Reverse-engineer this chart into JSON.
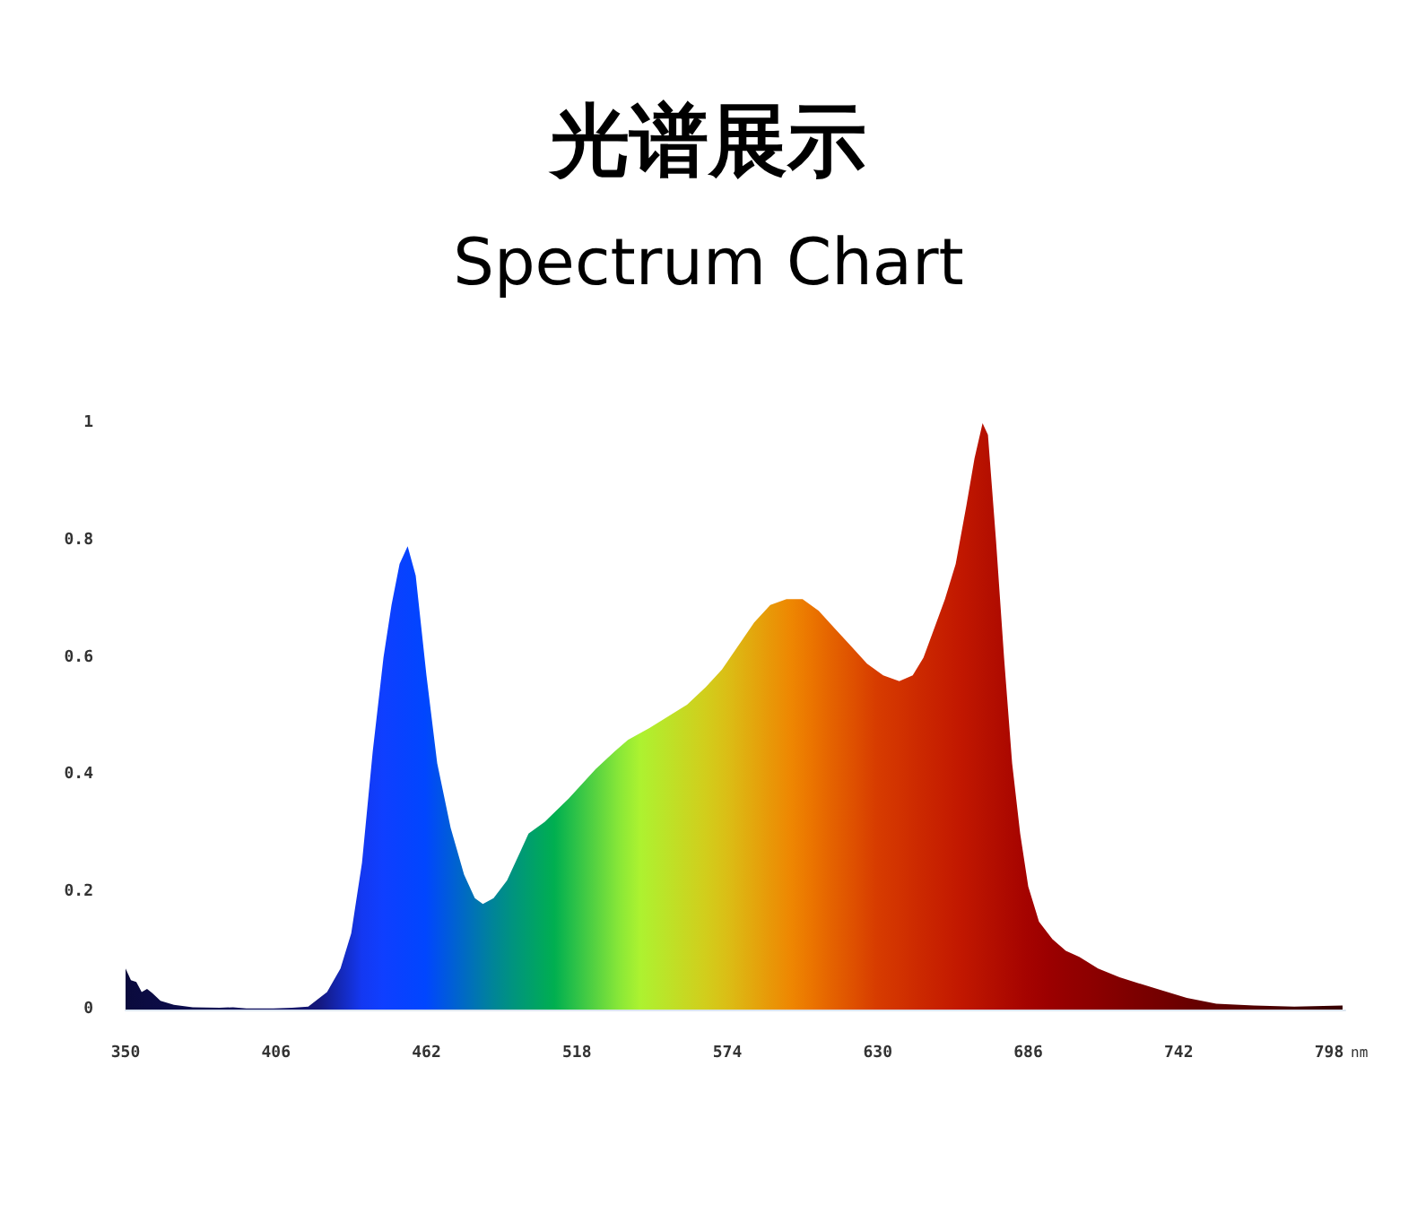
{
  "chart_data": {
    "type": "area",
    "title": "光谱展示",
    "subtitle": "Spectrum Chart",
    "xlabel": "nm",
    "x": [
      350,
      352,
      354,
      356,
      358,
      360,
      363,
      368,
      375,
      385,
      390,
      395,
      405,
      412,
      418,
      425,
      430,
      434,
      438,
      442,
      446,
      449,
      452,
      455,
      458,
      462,
      466,
      471,
      476,
      480,
      483,
      487,
      492,
      497,
      500,
      506,
      515,
      525,
      532,
      537,
      545,
      552,
      559,
      566,
      572,
      578,
      584,
      590,
      596,
      602,
      608,
      614,
      620,
      626,
      632,
      638,
      643,
      647,
      651,
      655,
      659,
      663,
      666,
      669,
      671,
      674,
      677,
      680,
      683,
      686,
      690,
      695,
      700,
      705,
      712,
      720,
      734,
      745,
      756,
      770,
      785,
      803
    ],
    "values": [
      0.07,
      0.05,
      0.047,
      0.03,
      0.035,
      0.028,
      0.015,
      0.008,
      0.004,
      0.003,
      0.004,
      0.002,
      0.002,
      0.003,
      0.005,
      0.03,
      0.07,
      0.13,
      0.25,
      0.44,
      0.6,
      0.69,
      0.76,
      0.79,
      0.74,
      0.57,
      0.42,
      0.31,
      0.23,
      0.19,
      0.18,
      0.19,
      0.22,
      0.27,
      0.3,
      0.32,
      0.36,
      0.41,
      0.44,
      0.46,
      0.48,
      0.5,
      0.52,
      0.55,
      0.58,
      0.62,
      0.66,
      0.69,
      0.7,
      0.7,
      0.68,
      0.65,
      0.62,
      0.59,
      0.57,
      0.56,
      0.57,
      0.6,
      0.65,
      0.7,
      0.76,
      0.86,
      0.94,
      1.0,
      0.98,
      0.8,
      0.6,
      0.42,
      0.3,
      0.21,
      0.15,
      0.12,
      0.1,
      0.09,
      0.07,
      0.055,
      0.035,
      0.02,
      0.01,
      0.007,
      0.005,
      0.007
    ],
    "xlim": [
      350,
      804
    ],
    "xticks": [
      350,
      406,
      462,
      518,
      574,
      630,
      686,
      742,
      798
    ],
    "ylim": [
      0,
      1
    ],
    "yticks": [
      0,
      0.2,
      0.4,
      0.6,
      0.8,
      1
    ],
    "grid": false
  }
}
